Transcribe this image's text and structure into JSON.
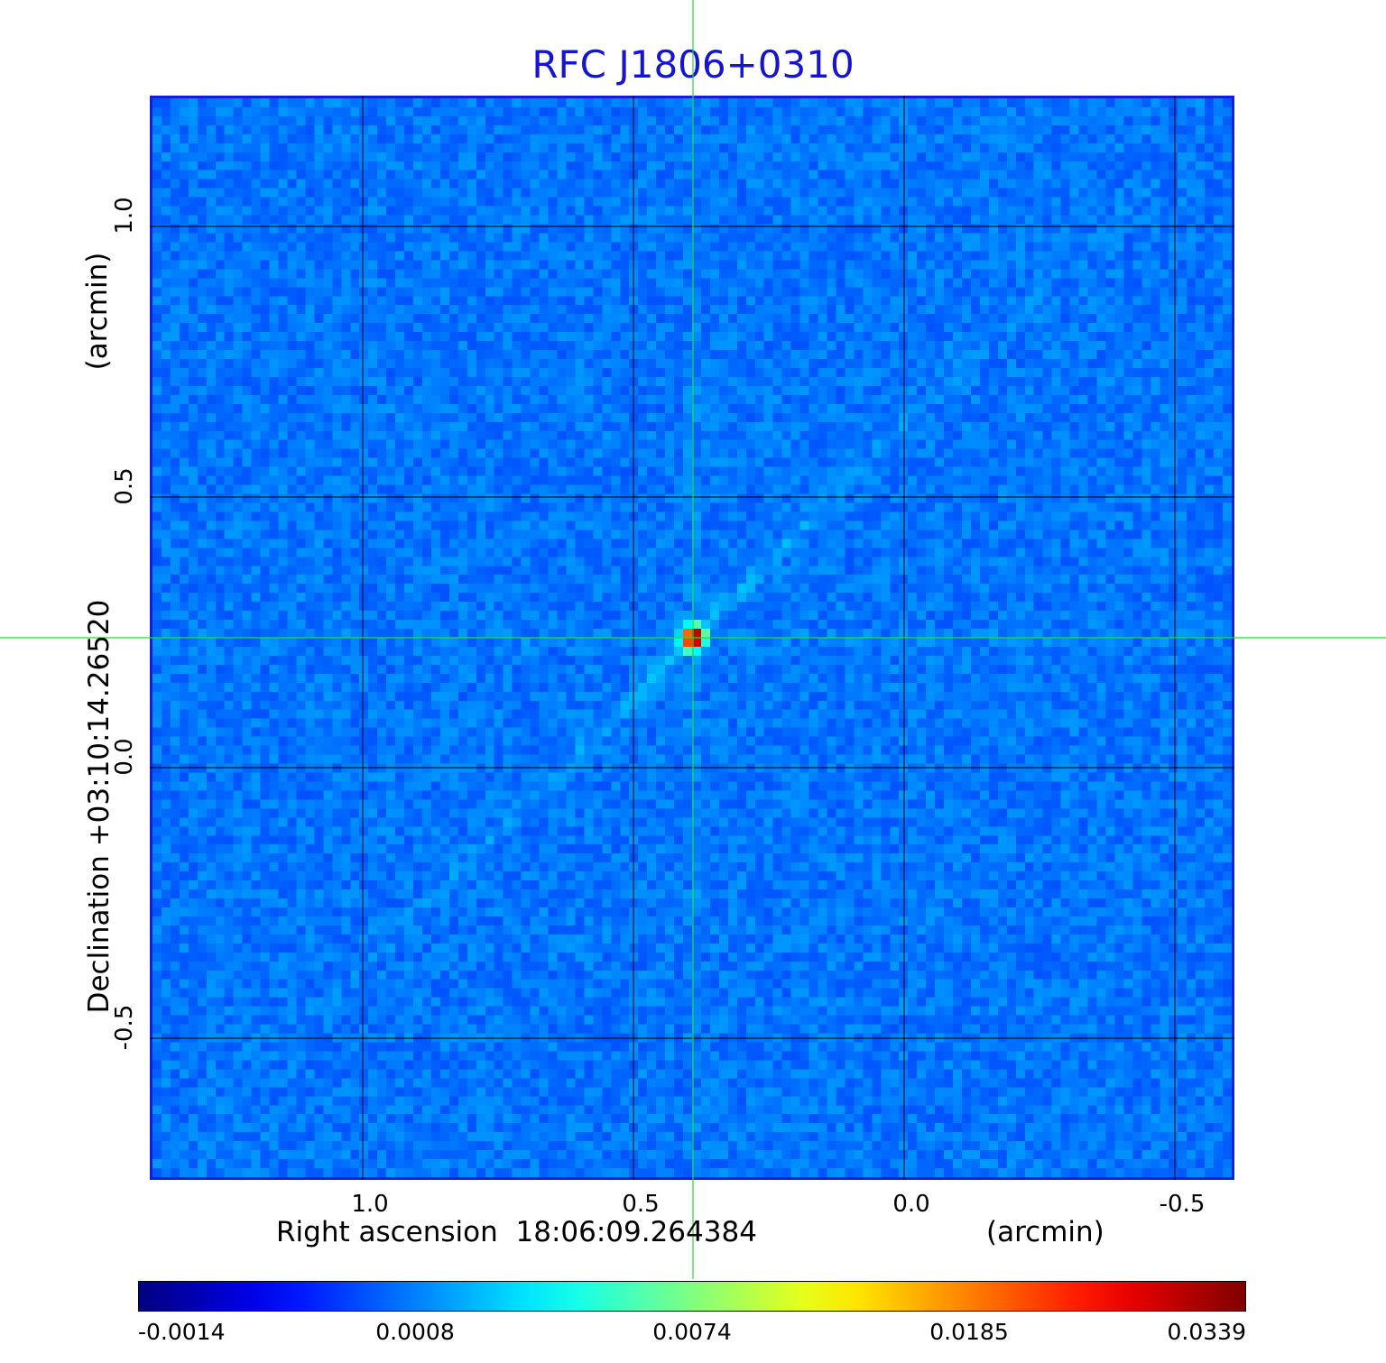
{
  "title": "RFC J1806+0310",
  "colors": {
    "title": "#1414d2",
    "frame": "#1020d8",
    "grid": "#000000",
    "crosshair": "#22dd33",
    "background_field": "#2a66f0",
    "colormap": "jet"
  },
  "x_axis": {
    "label_prefix": "Right ascension",
    "label_value": "18:06:09.264384",
    "unit": "(arcmin)",
    "ticks": [
      "1.0",
      "0.5",
      "0.0",
      "-0.5"
    ],
    "tick_values": [
      1.0,
      0.5,
      0.0,
      -0.5
    ],
    "range": [
      1.39,
      -0.61
    ],
    "direction": "decreasing left to right"
  },
  "y_axis": {
    "label": "Declination  +03:10:14.26520",
    "unit": "(arcmin)",
    "ticks": [
      "1.0",
      "0.5",
      "0.0",
      "-0.5"
    ],
    "tick_values": [
      1.0,
      0.5,
      0.0,
      -0.5
    ],
    "range": [
      -0.76,
      1.24
    ]
  },
  "grid": true,
  "crosshair": {
    "ra_arcmin": 0.39,
    "dec_arcmin": 0.24
  },
  "source": {
    "peak_ra_arcmin": 0.39,
    "peak_dec_arcmin": 0.24,
    "peak_value": 0.0339
  },
  "colorbar": {
    "ticks": [
      "-0.0014",
      "0.0008",
      "0.0074",
      "0.0185",
      "0.0339"
    ],
    "tick_values": [
      -0.0014,
      0.0008,
      0.0074,
      0.0185,
      0.0339
    ],
    "colormap": "jet"
  }
}
